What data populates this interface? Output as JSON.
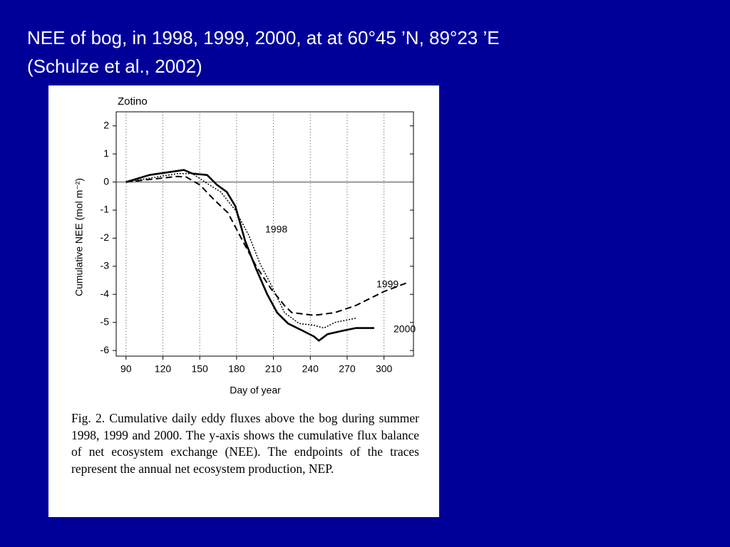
{
  "slide": {
    "title_line1": "NEE of bog, in 1998, 1999, 2000, at at  60°45 ’N, 89°23 ’E",
    "title_line2": "(Schulze et al., 2002)"
  },
  "chart_data": {
    "type": "line",
    "title": "Zotino",
    "xlabel": "Day of year",
    "ylabel": "Cumulative NEE (mol m⁻²)",
    "xlim": [
      82,
      324
    ],
    "ylim": [
      -6.2,
      2.5
    ],
    "xticks": [
      90,
      120,
      150,
      180,
      210,
      240,
      270,
      300
    ],
    "yticks": [
      -6,
      -5,
      -4,
      -3,
      -2,
      -1,
      0,
      1,
      2
    ],
    "grid": true,
    "series": [
      {
        "name": "1998",
        "color": "#000000",
        "style": "dotted",
        "x": [
          90,
          132,
          144,
          156,
          167,
          179,
          190,
          199,
          208,
          219,
          231,
          243,
          251,
          260,
          277
        ],
        "values": [
          0,
          0.3,
          0.3,
          -0.05,
          -0.35,
          -1.0,
          -1.9,
          -2.9,
          -3.65,
          -4.65,
          -5.04,
          -5.1,
          -5.2,
          -5.0,
          -4.85
        ]
      },
      {
        "name": "1999",
        "color": "#000000",
        "style": "dashed",
        "x": [
          90,
          132,
          139,
          150,
          161,
          173,
          185,
          196,
          208,
          219,
          225,
          243,
          260,
          277,
          300,
          318
        ],
        "values": [
          0,
          0.2,
          0.18,
          -0.1,
          -0.6,
          -1.1,
          -2.1,
          -3.0,
          -3.8,
          -4.4,
          -4.65,
          -4.75,
          -4.65,
          -4.4,
          -3.9,
          -3.6
        ]
      },
      {
        "name": "2000",
        "color": "#000000",
        "style": "solid",
        "x": [
          90,
          109,
          137,
          144,
          156,
          164,
          172,
          179,
          187,
          196,
          205,
          213,
          222,
          234,
          243,
          247,
          254,
          266,
          277,
          292
        ],
        "values": [
          0,
          0.25,
          0.43,
          0.3,
          0.25,
          -0.1,
          -0.35,
          -0.86,
          -2.1,
          -3.1,
          -4.0,
          -4.65,
          -5.04,
          -5.3,
          -5.5,
          -5.65,
          -5.42,
          -5.3,
          -5.2,
          -5.2
        ]
      }
    ],
    "caption": "Fig. 2. Cumulative daily eddy fluxes above the bog during summer 1998, 1999 and 2000. The y-axis shows the cumulative flux balance of net ecosystem exchange (NEE). The endpoints of the traces represent the annual net ecosystem production, NEP."
  }
}
